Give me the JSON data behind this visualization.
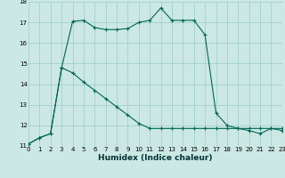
{
  "title": "",
  "xlabel": "Humidex (Indice chaleur)",
  "bg_color": "#cce8e4",
  "line_color": "#006655",
  "grid_color": "#99cccc",
  "ylim": [
    11,
    18
  ],
  "xlim": [
    0,
    23
  ],
  "yticks": [
    11,
    12,
    13,
    14,
    15,
    16,
    17,
    18
  ],
  "xticks": [
    0,
    1,
    2,
    3,
    4,
    5,
    6,
    7,
    8,
    9,
    10,
    11,
    12,
    13,
    14,
    15,
    16,
    17,
    18,
    19,
    20,
    21,
    22,
    23
  ],
  "curve1_x": [
    0,
    1,
    2,
    3,
    4,
    5,
    6,
    7,
    8,
    9,
    10,
    11,
    12,
    13,
    14,
    15,
    16,
    17,
    18,
    19,
    20,
    21,
    22,
    23
  ],
  "curve1_y": [
    11.1,
    11.4,
    11.6,
    14.8,
    17.05,
    17.1,
    16.75,
    16.65,
    16.65,
    16.7,
    17.0,
    17.1,
    17.7,
    17.1,
    17.1,
    17.1,
    16.4,
    12.6,
    12.0,
    11.85,
    11.75,
    11.6,
    11.85,
    11.75
  ],
  "curve2_x": [
    0,
    1,
    2,
    3,
    4,
    5,
    6,
    7,
    8,
    9,
    10,
    11,
    12,
    13,
    14,
    15,
    16,
    17,
    18,
    19,
    20,
    21,
    22,
    23
  ],
  "curve2_y": [
    11.1,
    11.4,
    11.6,
    14.8,
    14.55,
    14.1,
    13.7,
    13.3,
    12.9,
    12.5,
    12.1,
    11.85,
    11.85,
    11.85,
    11.85,
    11.85,
    11.85,
    11.85,
    11.85,
    11.85,
    11.85,
    11.85,
    11.85,
    11.85
  ],
  "tick_fontsize": 5.0,
  "label_fontsize": 6.5
}
